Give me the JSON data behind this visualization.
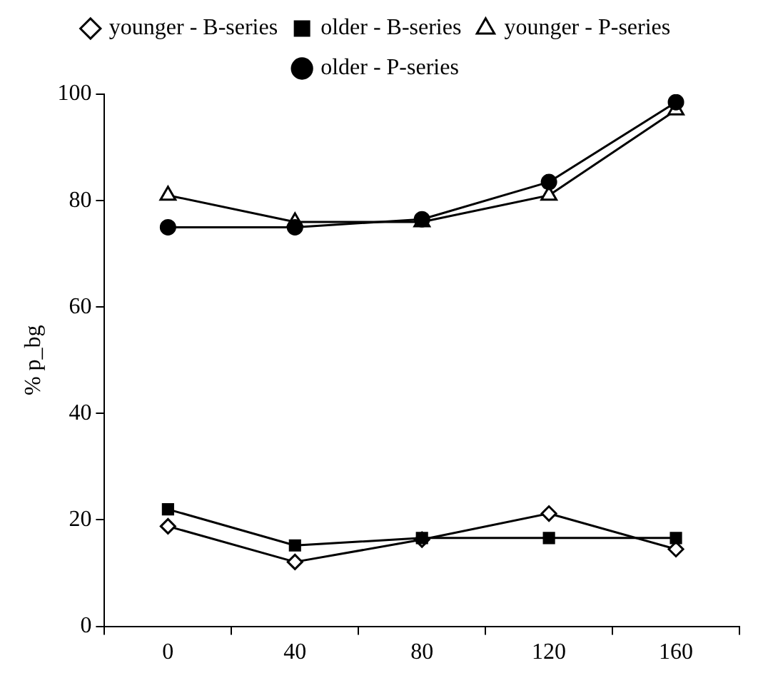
{
  "chart_data": {
    "type": "line",
    "ylabel": "% p_bg",
    "categories": [
      "0",
      "40",
      "80",
      "120",
      "160"
    ],
    "ylim": [
      0,
      100
    ],
    "yticks": [
      0,
      20,
      40,
      60,
      80,
      100
    ],
    "grid": false,
    "legend": "top",
    "line_style": "solid",
    "series": [
      {
        "name": "younger - B-series",
        "color": "#000000",
        "marker": "diamond",
        "values": [
          18.8,
          12.1,
          16.3,
          21.2,
          14.5
        ]
      },
      {
        "name": "older - B-series",
        "color": "#000000",
        "marker": "square",
        "values": [
          22,
          15.2,
          16.6,
          16.6,
          16.6
        ]
      },
      {
        "name": "younger - P-series",
        "color": "#000000",
        "marker": "triangle",
        "values": [
          81,
          76,
          76,
          81,
          97
        ]
      },
      {
        "name": "older - P-series",
        "color": "#000000",
        "marker": "circle",
        "values": [
          75,
          75,
          76.5,
          83.5,
          98.5
        ]
      }
    ]
  }
}
